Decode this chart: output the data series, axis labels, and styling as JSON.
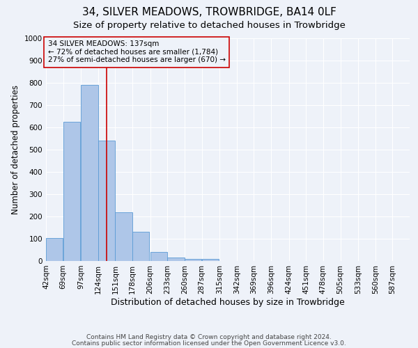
{
  "title": "34, SILVER MEADOWS, TROWBRIDGE, BA14 0LF",
  "subtitle": "Size of property relative to detached houses in Trowbridge",
  "xlabel": "Distribution of detached houses by size in Trowbridge",
  "ylabel": "Number of detached properties",
  "bin_edges": [
    42,
    69,
    97,
    124,
    151,
    178,
    206,
    233,
    260,
    287,
    315,
    342,
    369,
    396,
    424,
    451,
    478,
    505,
    533,
    560,
    587
  ],
  "bar_heights": [
    103,
    625,
    790,
    540,
    220,
    130,
    40,
    15,
    10,
    10,
    0,
    0,
    0,
    0,
    0,
    0,
    0,
    0,
    0,
    0
  ],
  "bar_color": "#aec6e8",
  "bar_edgecolor": "#5b9bd5",
  "vline_x": 137,
  "vline_color": "#cc0000",
  "ylim": [
    0,
    1000
  ],
  "yticks": [
    0,
    100,
    200,
    300,
    400,
    500,
    600,
    700,
    800,
    900,
    1000
  ],
  "annotation_box_text": "34 SILVER MEADOWS: 137sqm\n← 72% of detached houses are smaller (1,784)\n27% of semi-detached houses are larger (670) →",
  "annotation_box_color": "#cc0000",
  "background_color": "#eef2f9",
  "grid_color": "#ffffff",
  "footer_line1": "Contains HM Land Registry data © Crown copyright and database right 2024.",
  "footer_line2": "Contains public sector information licensed under the Open Government Licence v3.0.",
  "title_fontsize": 11,
  "subtitle_fontsize": 9.5,
  "xlabel_fontsize": 9,
  "ylabel_fontsize": 8.5,
  "tick_fontsize": 7.5,
  "annotation_fontsize": 7.5,
  "footer_fontsize": 6.5
}
